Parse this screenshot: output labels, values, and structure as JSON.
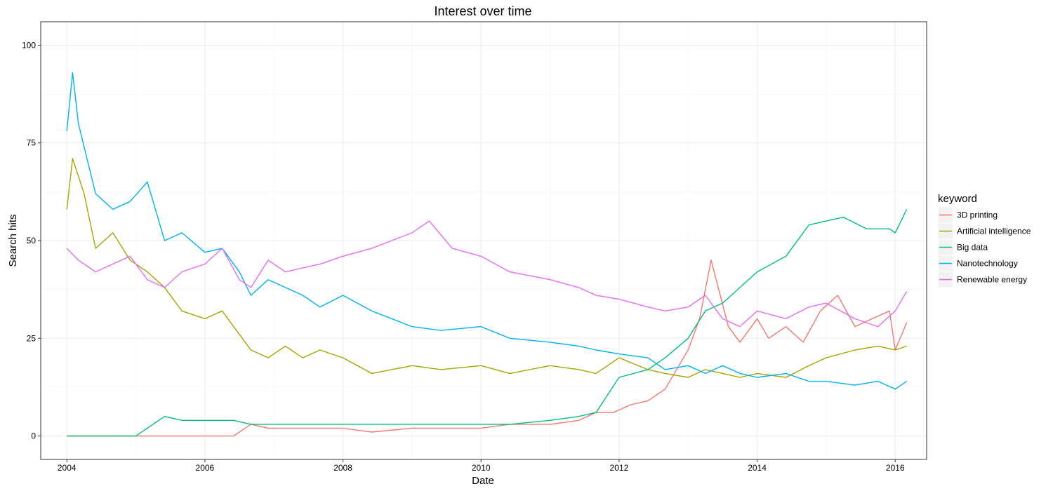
{
  "chart_data": {
    "type": "line",
    "title": "Interest over time",
    "xlabel": "Date",
    "ylabel": "Search hits",
    "xlim": [
      "2003-08-15",
      "2016-06-15"
    ],
    "ylim": [
      -6,
      106
    ],
    "x_ticks": [
      "2004",
      "2006",
      "2008",
      "2010",
      "2012",
      "2014",
      "2016"
    ],
    "y_ticks": [
      "0",
      "25",
      "50",
      "75",
      "100"
    ],
    "grid": true,
    "legend": {
      "title": "keyword",
      "position": "right",
      "labels": [
        "3D printing",
        "Artificial intelligence",
        "Big data",
        "Nanotechnology",
        "Renewable energy"
      ]
    },
    "series": [
      {
        "name": "3D printing",
        "color": "#F8766D",
        "x": [
          "2004-01",
          "2005-01",
          "2006-01",
          "2006-06",
          "2006-09",
          "2006-12",
          "2007-06",
          "2008-01",
          "2008-06",
          "2009-01",
          "2009-06",
          "2010-01",
          "2010-06",
          "2011-01",
          "2011-06",
          "2011-09",
          "2011-12",
          "2012-03",
          "2012-06",
          "2012-09",
          "2013-01",
          "2013-03",
          "2013-05",
          "2013-08",
          "2013-10",
          "2014-01",
          "2014-03",
          "2014-06",
          "2014-09",
          "2014-12",
          "2015-03",
          "2015-06",
          "2015-09",
          "2015-12",
          "2016-01",
          "2016-03"
        ],
        "y": [
          0,
          0,
          0,
          0,
          3,
          2,
          2,
          2,
          1,
          2,
          2,
          2,
          3,
          3,
          4,
          6,
          6,
          8,
          9,
          12,
          22,
          30,
          45,
          28,
          24,
          30,
          25,
          28,
          24,
          32,
          36,
          28,
          30,
          32,
          22,
          29
        ]
      },
      {
        "name": "Artificial intelligence",
        "color": "#A3A500",
        "x": [
          "2004-01",
          "2004-02",
          "2004-04",
          "2004-06",
          "2004-09",
          "2004-12",
          "2005-03",
          "2005-06",
          "2005-09",
          "2006-01",
          "2006-04",
          "2006-07",
          "2006-09",
          "2006-12",
          "2007-03",
          "2007-06",
          "2007-09",
          "2008-01",
          "2008-06",
          "2009-01",
          "2009-06",
          "2010-01",
          "2010-06",
          "2011-01",
          "2011-06",
          "2011-09",
          "2012-01",
          "2012-06",
          "2012-09",
          "2013-01",
          "2013-04",
          "2013-07",
          "2013-10",
          "2014-01",
          "2014-06",
          "2014-10",
          "2015-01",
          "2015-06",
          "2015-10",
          "2016-01",
          "2016-03"
        ],
        "y": [
          58,
          71,
          62,
          48,
          52,
          45,
          42,
          38,
          32,
          30,
          32,
          26,
          22,
          20,
          23,
          20,
          22,
          20,
          16,
          18,
          17,
          18,
          16,
          18,
          17,
          16,
          20,
          17,
          16,
          15,
          17,
          16,
          15,
          16,
          15,
          18,
          20,
          22,
          23,
          22,
          23
        ]
      },
      {
        "name": "Big data",
        "color": "#00BF7D",
        "x": [
          "2004-01",
          "2004-06",
          "2004-09",
          "2005-01",
          "2005-06",
          "2005-09",
          "2006-01",
          "2006-06",
          "2006-09",
          "2007-01",
          "2007-06",
          "2008-01",
          "2008-06",
          "2009-01",
          "2009-06",
          "2010-01",
          "2010-06",
          "2011-01",
          "2011-06",
          "2011-09",
          "2012-01",
          "2012-06",
          "2012-09",
          "2013-01",
          "2013-04",
          "2013-07",
          "2013-10",
          "2014-01",
          "2014-06",
          "2014-10",
          "2015-01",
          "2015-04",
          "2015-08",
          "2015-12",
          "2016-01",
          "2016-03"
        ],
        "y": [
          0,
          0,
          0,
          0,
          5,
          4,
          4,
          4,
          3,
          3,
          3,
          3,
          3,
          3,
          3,
          3,
          3,
          4,
          5,
          6,
          15,
          17,
          20,
          25,
          32,
          34,
          38,
          42,
          46,
          54,
          55,
          56,
          53,
          53,
          52,
          58
        ]
      },
      {
        "name": "Nanotechnology",
        "color": "#00B0F6",
        "x": [
          "2004-01",
          "2004-02",
          "2004-03",
          "2004-06",
          "2004-09",
          "2004-12",
          "2005-03",
          "2005-06",
          "2005-09",
          "2006-01",
          "2006-04",
          "2006-07",
          "2006-09",
          "2006-12",
          "2007-03",
          "2007-06",
          "2007-09",
          "2008-01",
          "2008-06",
          "2009-01",
          "2009-06",
          "2010-01",
          "2010-06",
          "2011-01",
          "2011-06",
          "2011-09",
          "2012-01",
          "2012-06",
          "2012-09",
          "2013-01",
          "2013-04",
          "2013-07",
          "2013-10",
          "2014-01",
          "2014-06",
          "2014-10",
          "2015-01",
          "2015-06",
          "2015-10",
          "2016-01",
          "2016-03"
        ],
        "y": [
          78,
          93,
          80,
          62,
          58,
          60,
          65,
          50,
          52,
          47,
          48,
          42,
          36,
          40,
          38,
          36,
          33,
          36,
          32,
          28,
          27,
          28,
          25,
          24,
          23,
          22,
          21,
          20,
          17,
          18,
          16,
          18,
          16,
          15,
          16,
          14,
          14,
          13,
          14,
          12,
          14
        ]
      },
      {
        "name": "Renewable energy",
        "color": "#E76BF3",
        "x": [
          "2004-01",
          "2004-03",
          "2004-06",
          "2004-09",
          "2004-12",
          "2005-03",
          "2005-06",
          "2005-09",
          "2006-01",
          "2006-04",
          "2006-07",
          "2006-09",
          "2006-12",
          "2007-03",
          "2007-06",
          "2007-09",
          "2008-01",
          "2008-06",
          "2009-01",
          "2009-04",
          "2009-08",
          "2010-01",
          "2010-06",
          "2011-01",
          "2011-06",
          "2011-09",
          "2012-01",
          "2012-06",
          "2012-09",
          "2013-01",
          "2013-04",
          "2013-07",
          "2013-10",
          "2014-01",
          "2014-06",
          "2014-10",
          "2015-01",
          "2015-06",
          "2015-10",
          "2016-01",
          "2016-03"
        ],
        "y": [
          48,
          45,
          42,
          44,
          46,
          40,
          38,
          42,
          44,
          48,
          40,
          38,
          45,
          42,
          43,
          44,
          46,
          48,
          52,
          55,
          48,
          46,
          42,
          40,
          38,
          36,
          35,
          33,
          32,
          33,
          36,
          30,
          28,
          32,
          30,
          33,
          34,
          30,
          28,
          32,
          37
        ]
      }
    ]
  }
}
